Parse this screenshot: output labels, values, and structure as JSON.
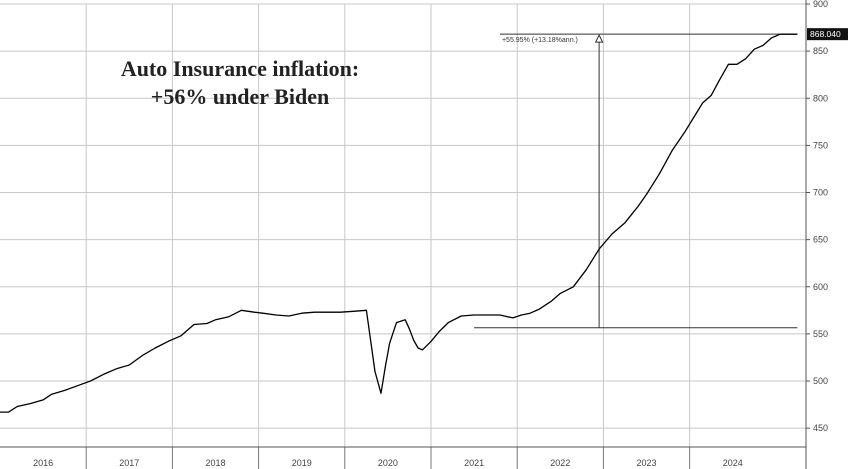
{
  "chart_data": {
    "type": "line",
    "title_lines": [
      "Auto Insurance inflation:",
      "+56% under Biden"
    ],
    "xlabel": "",
    "ylabel": "",
    "x_ticks": [
      "2016",
      "2017",
      "2018",
      "2019",
      "2020",
      "2021",
      "2022",
      "2023",
      "2024"
    ],
    "y_ticks": [
      450,
      500,
      550,
      600,
      650,
      700,
      750,
      800,
      850,
      900
    ],
    "ylim": [
      430,
      900
    ],
    "xlim": [
      2015.5,
      2024.85
    ],
    "grid": true,
    "y_axis_side": "right",
    "last_value_label": "868.040",
    "annotation": {
      "text": "+55.95% (+13.18%ann.)",
      "baseline_value": 556.5,
      "baseline_from_x": 2021.0,
      "arrow_x": 2022.45,
      "end_x": 2024.75,
      "end_value": 868.04
    },
    "series": [
      {
        "color": "#000000",
        "x": [
          2015.5,
          2015.6,
          2015.7,
          2015.85,
          2016.0,
          2016.1,
          2016.25,
          2016.4,
          2016.55,
          2016.7,
          2016.85,
          2017.0,
          2017.15,
          2017.3,
          2017.45,
          2017.6,
          2017.75,
          2017.9,
          2018.0,
          2018.15,
          2018.3,
          2018.45,
          2018.55,
          2018.7,
          2018.85,
          2019.0,
          2019.15,
          2019.3,
          2019.45,
          2019.6,
          2019.75,
          2019.85,
          2019.92,
          2019.97,
          2020.02,
          2020.1,
          2020.2,
          2020.25,
          2020.3,
          2020.35,
          2020.4,
          2020.5,
          2020.6,
          2020.7,
          2020.85,
          2021.0,
          2021.15,
          2021.3,
          2021.45,
          2021.55,
          2021.65,
          2021.75,
          2021.9,
          2022.0,
          2022.15,
          2022.3,
          2022.45,
          2022.6,
          2022.75,
          2022.9,
          2023.0,
          2023.15,
          2023.3,
          2023.45,
          2023.55,
          2023.65,
          2023.75,
          2023.85,
          2023.95,
          2024.05,
          2024.15,
          2024.25,
          2024.35,
          2024.45,
          2024.55,
          2024.65,
          2024.75
        ],
        "values": [
          467,
          467,
          473,
          476,
          480,
          486,
          490,
          495,
          500,
          507,
          513,
          517,
          527,
          535,
          542,
          548,
          560,
          561,
          565,
          568,
          575,
          573,
          572,
          570,
          569,
          572,
          573,
          573,
          573,
          574,
          575,
          510,
          487,
          515,
          540,
          562,
          565,
          555,
          543,
          535,
          533,
          542,
          553,
          562,
          569,
          570,
          570,
          570,
          567,
          570,
          572,
          576,
          585,
          593,
          600,
          618,
          640,
          656,
          668,
          685,
          698,
          720,
          745,
          765,
          780,
          795,
          803,
          820,
          836,
          836,
          842,
          852,
          856,
          864,
          868,
          868,
          868
        ]
      }
    ]
  }
}
